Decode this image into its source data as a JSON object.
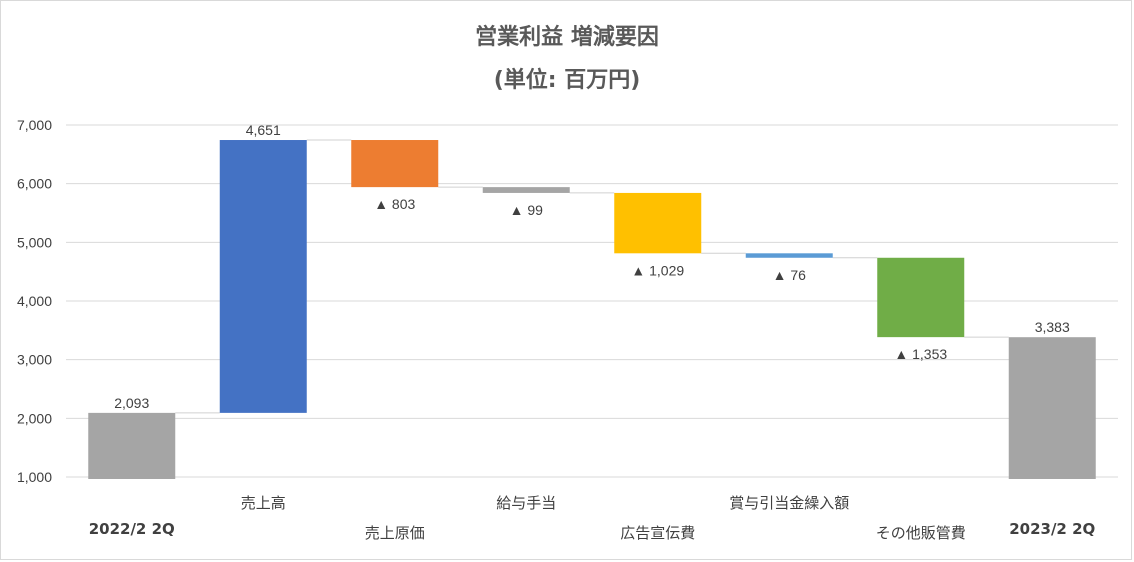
{
  "chart_data": {
    "type": "waterfall",
    "title": "営業利益 増減要因",
    "subtitle": "(単位: 百万円)",
    "ylim": [
      1000,
      7000
    ],
    "yticks": [
      "1,000",
      "2,000",
      "3,000",
      "4,000",
      "5,000",
      "6,000",
      "7,000"
    ],
    "grid": true,
    "categories": [
      "2022/2 2Q",
      "売上高",
      "売上原価",
      "給与手当",
      "広告宣伝費",
      "賞与引当金繰入額",
      "その他販管費",
      "2023/2 2Q"
    ],
    "steps": [
      {
        "category": "2022/2 2Q",
        "kind": "total",
        "value": 2093,
        "label": "2,093",
        "color": "#a5a5a5"
      },
      {
        "category": "売上高",
        "kind": "increase",
        "value": 4651,
        "label": "4,651",
        "color": "#4472c4"
      },
      {
        "category": "売上原価",
        "kind": "decrease",
        "value": 803,
        "label": "▲ 803",
        "color": "#ed7d31"
      },
      {
        "category": "給与手当",
        "kind": "decrease",
        "value": 99,
        "label": "▲ 99",
        "color": "#a5a5a5"
      },
      {
        "category": "広告宣伝費",
        "kind": "decrease",
        "value": 1029,
        "label": "▲ 1,029",
        "color": "#ffc000"
      },
      {
        "category": "賞与引当金繰入額",
        "kind": "decrease",
        "value": 76,
        "label": "▲ 76",
        "color": "#5b9bd5"
      },
      {
        "category": "その他販管費",
        "kind": "decrease",
        "value": 1353,
        "label": "▲ 1,353",
        "color": "#70ad47"
      },
      {
        "category": "2023/2 2Q",
        "kind": "total",
        "value": 3383,
        "label": "3,383",
        "color": "#a5a5a5"
      }
    ]
  }
}
